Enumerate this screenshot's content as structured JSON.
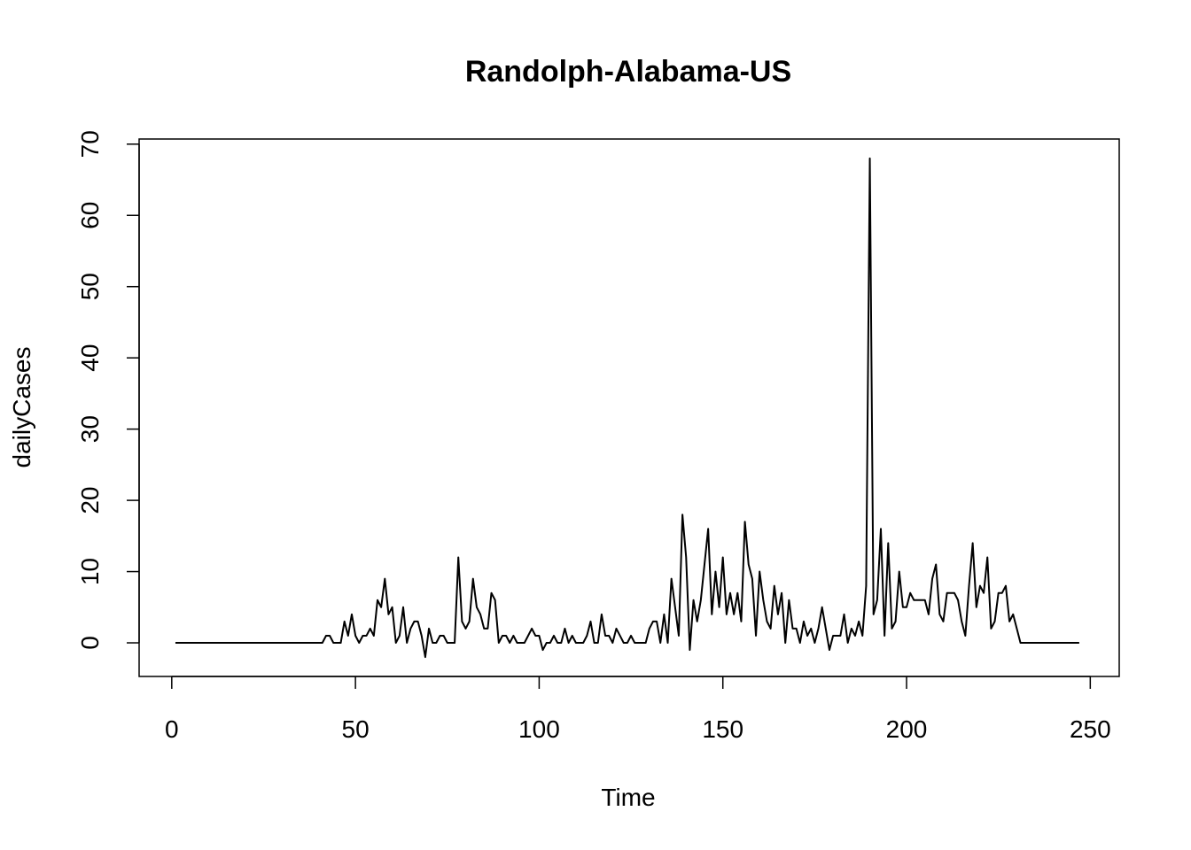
{
  "chart_data": {
    "type": "line",
    "title": "Randolph-Alabama-US",
    "xlabel": "Time",
    "ylabel": "dailyCases",
    "xlim": [
      -8.88,
      257.88
    ],
    "ylim": [
      -4.72,
      70.72
    ],
    "xticks": [
      0,
      50,
      100,
      150,
      200,
      250
    ],
    "yticks": [
      0,
      10,
      20,
      30,
      40,
      50,
      60,
      70
    ],
    "grid": false,
    "legend": "none",
    "line_color": "#000000",
    "series": [
      {
        "x_start": 1,
        "values": [
          0,
          0,
          0,
          0,
          0,
          0,
          0,
          0,
          0,
          0,
          0,
          0,
          0,
          0,
          0,
          0,
          0,
          0,
          0,
          0,
          0,
          0,
          0,
          0,
          0,
          0,
          0,
          0,
          0,
          0,
          0,
          0,
          0,
          0,
          0,
          0,
          0,
          0,
          0,
          0,
          0,
          1,
          1,
          0,
          0,
          0,
          3,
          1,
          4,
          1,
          0,
          1,
          1,
          2,
          1,
          6,
          5,
          9,
          4,
          5,
          0,
          1,
          5,
          0,
          2,
          3,
          3,
          1,
          -2,
          2,
          0,
          0,
          1,
          1,
          0,
          0,
          0,
          12,
          3,
          2,
          3,
          9,
          5,
          4,
          2,
          2,
          7,
          6,
          0,
          1,
          1,
          0,
          1,
          0,
          0,
          0,
          1,
          2,
          1,
          1,
          -1,
          0,
          0,
          1,
          0,
          0,
          2,
          0,
          1,
          0,
          0,
          0,
          1,
          3,
          0,
          0,
          4,
          1,
          1,
          0,
          2,
          1,
          0,
          0,
          1,
          0,
          0,
          0,
          0,
          2,
          3,
          3,
          0,
          4,
          0,
          9,
          5,
          1,
          18,
          12,
          -1,
          6,
          3,
          6,
          11,
          16,
          4,
          10,
          5,
          12,
          4,
          7,
          4,
          7,
          3,
          17,
          11,
          9,
          1,
          10,
          6,
          3,
          2,
          8,
          4,
          7,
          0,
          6,
          2,
          2,
          0,
          3,
          1,
          2,
          0,
          2,
          5,
          2,
          -1,
          1,
          1,
          1,
          4,
          0,
          2,
          1,
          3,
          1,
          8,
          68,
          4,
          6,
          16,
          1,
          14,
          2,
          3,
          10,
          5,
          5,
          7,
          6,
          6,
          6,
          6,
          4,
          9,
          11,
          4,
          3,
          7,
          7,
          7,
          6,
          3,
          1,
          8,
          14,
          5,
          8,
          7,
          12,
          2,
          3,
          7,
          7,
          8,
          3,
          4,
          2,
          0,
          0,
          0,
          0,
          0,
          0,
          0,
          0,
          0,
          0,
          0,
          0,
          0,
          0,
          0,
          0,
          0
        ]
      }
    ]
  }
}
